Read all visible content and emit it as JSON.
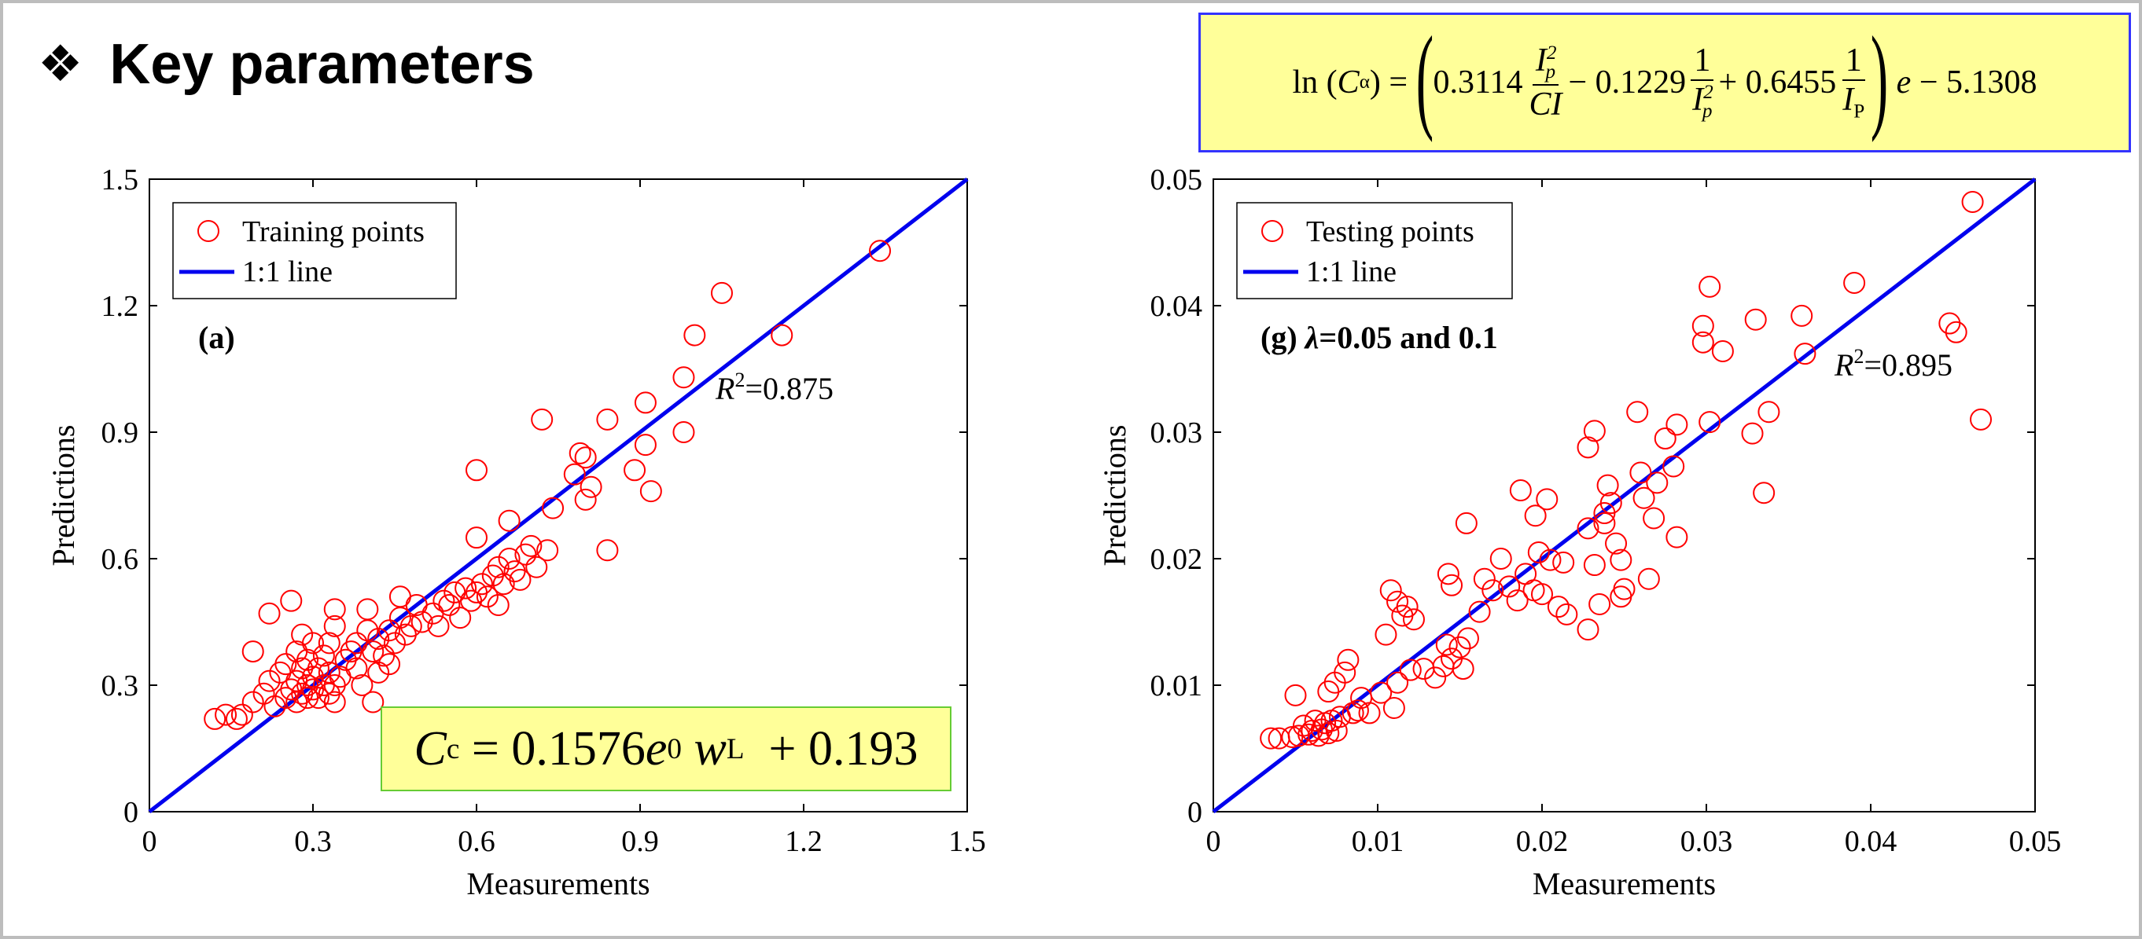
{
  "heading": {
    "bullet": "❖",
    "title": "Key parameters"
  },
  "colors": {
    "points": "#ff0000",
    "line": "#0000ee",
    "formula_bg": "#ffff99",
    "top_formula_border": "#3333ff",
    "left_formula_border": "#66cc33"
  },
  "formula_top": {
    "lhs_fn": "ln",
    "lhs_var": "C",
    "lhs_sub": "α",
    "coef1": "0.3114",
    "frac1_num": "I",
    "frac1_num_sub": "p",
    "frac1_num_sup": "2",
    "frac1_den": "CI",
    "op1": "−",
    "coef2": "0.1229",
    "frac2_num": "1",
    "frac2_den": "I",
    "frac2_den_sub": "p",
    "frac2_den_sup": "2",
    "op2": "+",
    "coef3": "0.6455",
    "frac3_num": "1",
    "frac3_den": "I",
    "frac3_den_sub": "P",
    "tail_var": "e",
    "op3": "−",
    "const": "5.1308"
  },
  "formula_left": {
    "var": "C",
    "var_sub": "c",
    "eq": "=",
    "coef": "0.1576",
    "e": "e",
    "e_sub": "0",
    "w": "w",
    "w_sub": "L",
    "op": "+",
    "const": "0.193"
  },
  "chart_data": [
    {
      "type": "scatter",
      "xlabel": "Measurements",
      "ylabel": "Predictions",
      "xlim": [
        0,
        1.5
      ],
      "ylim": [
        0,
        1.5
      ],
      "ticks": [
        "0",
        "0.3",
        "0.6",
        "0.9",
        "1.2",
        "1.5"
      ],
      "tick_values": [
        0,
        0.3,
        0.6,
        0.9,
        1.2,
        1.5
      ],
      "panel_label": "(a)",
      "r2": {
        "symbol": "R",
        "sup": "2",
        "value": "=0.875"
      },
      "legend": {
        "placement": "top-left",
        "points": "Training points",
        "line": "1:1 line"
      },
      "line": [
        [
          0,
          0
        ],
        [
          1.5,
          1.5
        ]
      ],
      "points": [
        [
          0.12,
          0.22
        ],
        [
          0.14,
          0.23
        ],
        [
          0.16,
          0.22
        ],
        [
          0.17,
          0.23
        ],
        [
          0.19,
          0.26
        ],
        [
          0.19,
          0.38
        ],
        [
          0.21,
          0.28
        ],
        [
          0.22,
          0.31
        ],
        [
          0.22,
          0.47
        ],
        [
          0.23,
          0.25
        ],
        [
          0.24,
          0.33
        ],
        [
          0.25,
          0.27
        ],
        [
          0.25,
          0.35
        ],
        [
          0.26,
          0.29
        ],
        [
          0.26,
          0.5
        ],
        [
          0.27,
          0.26
        ],
        [
          0.27,
          0.31
        ],
        [
          0.27,
          0.38
        ],
        [
          0.28,
          0.28
        ],
        [
          0.28,
          0.34
        ],
        [
          0.28,
          0.42
        ],
        [
          0.29,
          0.27
        ],
        [
          0.29,
          0.3
        ],
        [
          0.29,
          0.36
        ],
        [
          0.3,
          0.29
        ],
        [
          0.3,
          0.32
        ],
        [
          0.3,
          0.4
        ],
        [
          0.31,
          0.27
        ],
        [
          0.31,
          0.34
        ],
        [
          0.32,
          0.3
        ],
        [
          0.32,
          0.37
        ],
        [
          0.33,
          0.28
        ],
        [
          0.33,
          0.33
        ],
        [
          0.33,
          0.4
        ],
        [
          0.34,
          0.26
        ],
        [
          0.34,
          0.3
        ],
        [
          0.34,
          0.44
        ],
        [
          0.34,
          0.48
        ],
        [
          0.35,
          0.32
        ],
        [
          0.36,
          0.36
        ],
        [
          0.37,
          0.38
        ],
        [
          0.38,
          0.34
        ],
        [
          0.38,
          0.4
        ],
        [
          0.39,
          0.3
        ],
        [
          0.4,
          0.43
        ],
        [
          0.4,
          0.48
        ],
        [
          0.41,
          0.26
        ],
        [
          0.41,
          0.38
        ],
        [
          0.42,
          0.33
        ],
        [
          0.42,
          0.41
        ],
        [
          0.43,
          0.37
        ],
        [
          0.44,
          0.35
        ],
        [
          0.44,
          0.43
        ],
        [
          0.45,
          0.4
        ],
        [
          0.46,
          0.46
        ],
        [
          0.46,
          0.51
        ],
        [
          0.47,
          0.42
        ],
        [
          0.48,
          0.44
        ],
        [
          0.49,
          0.49
        ],
        [
          0.5,
          0.45
        ],
        [
          0.52,
          0.47
        ],
        [
          0.53,
          0.44
        ],
        [
          0.54,
          0.5
        ],
        [
          0.55,
          0.49
        ],
        [
          0.56,
          0.52
        ],
        [
          0.57,
          0.46
        ],
        [
          0.58,
          0.53
        ],
        [
          0.59,
          0.5
        ],
        [
          0.6,
          0.52
        ],
        [
          0.6,
          0.81
        ],
        [
          0.6,
          0.65
        ],
        [
          0.61,
          0.54
        ],
        [
          0.62,
          0.51
        ],
        [
          0.63,
          0.56
        ],
        [
          0.64,
          0.49
        ],
        [
          0.64,
          0.58
        ],
        [
          0.65,
          0.54
        ],
        [
          0.66,
          0.6
        ],
        [
          0.66,
          0.69
        ],
        [
          0.67,
          0.57
        ],
        [
          0.68,
          0.55
        ],
        [
          0.69,
          0.61
        ],
        [
          0.7,
          0.63
        ],
        [
          0.71,
          0.58
        ],
        [
          0.72,
          0.93
        ],
        [
          0.73,
          0.62
        ],
        [
          0.74,
          0.72
        ],
        [
          0.78,
          0.8
        ],
        [
          0.79,
          0.85
        ],
        [
          0.8,
          0.74
        ],
        [
          0.8,
          0.84
        ],
        [
          0.81,
          0.77
        ],
        [
          0.84,
          0.62
        ],
        [
          0.84,
          0.93
        ],
        [
          0.89,
          0.81
        ],
        [
          0.91,
          0.87
        ],
        [
          0.91,
          0.97
        ],
        [
          0.92,
          0.76
        ],
        [
          0.98,
          0.9
        ],
        [
          0.98,
          1.03
        ],
        [
          1.0,
          1.13
        ],
        [
          1.05,
          1.23
        ],
        [
          1.16,
          1.13
        ],
        [
          1.34,
          1.33
        ]
      ]
    },
    {
      "type": "scatter",
      "xlabel": "Measurements",
      "ylabel": "Predictions",
      "xlim": [
        0,
        0.05
      ],
      "ylim": [
        0,
        0.05
      ],
      "ticks": [
        "0",
        "0.01",
        "0.02",
        "0.03",
        "0.04",
        "0.05"
      ],
      "tick_values": [
        0,
        0.01,
        0.02,
        0.03,
        0.04,
        0.05
      ],
      "panel_label_prefix": "(g) ",
      "panel_label_symbol": "λ",
      "panel_label_suffix": "=0.05 and 0.1",
      "r2": {
        "symbol": "R",
        "sup": "2",
        "value": "=0.895"
      },
      "legend": {
        "placement": "top-left",
        "points": "Testing points",
        "line": "1:1 line"
      },
      "line": [
        [
          0,
          0
        ],
        [
          0.05,
          0.05
        ]
      ],
      "points": [
        [
          0.0035,
          0.0058
        ],
        [
          0.004,
          0.0058
        ],
        [
          0.0048,
          0.0059
        ],
        [
          0.005,
          0.0092
        ],
        [
          0.0052,
          0.006
        ],
        [
          0.0055,
          0.0068
        ],
        [
          0.0058,
          0.0061
        ],
        [
          0.006,
          0.0064
        ],
        [
          0.0062,
          0.0072
        ],
        [
          0.0064,
          0.006
        ],
        [
          0.0066,
          0.0065
        ],
        [
          0.0068,
          0.007
        ],
        [
          0.007,
          0.0095
        ],
        [
          0.007,
          0.0062
        ],
        [
          0.0072,
          0.0072
        ],
        [
          0.0074,
          0.0102
        ],
        [
          0.0075,
          0.0064
        ],
        [
          0.0077,
          0.0075
        ],
        [
          0.008,
          0.011
        ],
        [
          0.0082,
          0.012
        ],
        [
          0.0085,
          0.0078
        ],
        [
          0.0088,
          0.008
        ],
        [
          0.009,
          0.009
        ],
        [
          0.0095,
          0.0078
        ],
        [
          0.0102,
          0.0094
        ],
        [
          0.0105,
          0.014
        ],
        [
          0.0108,
          0.0175
        ],
        [
          0.011,
          0.0082
        ],
        [
          0.0112,
          0.0102
        ],
        [
          0.0112,
          0.0166
        ],
        [
          0.0115,
          0.0155
        ],
        [
          0.0118,
          0.0162
        ],
        [
          0.012,
          0.0112
        ],
        [
          0.0122,
          0.0152
        ],
        [
          0.0128,
          0.0113
        ],
        [
          0.0135,
          0.0106
        ],
        [
          0.014,
          0.0115
        ],
        [
          0.0142,
          0.0132
        ],
        [
          0.0143,
          0.0188
        ],
        [
          0.0145,
          0.0121
        ],
        [
          0.0145,
          0.0179
        ],
        [
          0.015,
          0.013
        ],
        [
          0.0152,
          0.0113
        ],
        [
          0.0154,
          0.0228
        ],
        [
          0.0155,
          0.0137
        ],
        [
          0.0162,
          0.0158
        ],
        [
          0.0165,
          0.0184
        ],
        [
          0.017,
          0.0175
        ],
        [
          0.0175,
          0.02
        ],
        [
          0.018,
          0.0178
        ],
        [
          0.0185,
          0.0167
        ],
        [
          0.0187,
          0.0254
        ],
        [
          0.019,
          0.0188
        ],
        [
          0.0195,
          0.0175
        ],
        [
          0.0196,
          0.0234
        ],
        [
          0.0198,
          0.0205
        ],
        [
          0.02,
          0.0172
        ],
        [
          0.0203,
          0.0247
        ],
        [
          0.0205,
          0.0199
        ],
        [
          0.021,
          0.0162
        ],
        [
          0.0213,
          0.0197
        ],
        [
          0.0215,
          0.0156
        ],
        [
          0.0228,
          0.0144
        ],
        [
          0.0228,
          0.0224
        ],
        [
          0.0228,
          0.0288
        ],
        [
          0.0232,
          0.0301
        ],
        [
          0.0232,
          0.0195
        ],
        [
          0.0235,
          0.0164
        ],
        [
          0.0238,
          0.0228
        ],
        [
          0.0238,
          0.0236
        ],
        [
          0.024,
          0.0258
        ],
        [
          0.0242,
          0.0244
        ],
        [
          0.0245,
          0.0212
        ],
        [
          0.0248,
          0.0199
        ],
        [
          0.0248,
          0.017
        ],
        [
          0.025,
          0.0176
        ],
        [
          0.0258,
          0.0316
        ],
        [
          0.026,
          0.0268
        ],
        [
          0.0262,
          0.0248
        ],
        [
          0.0265,
          0.0184
        ],
        [
          0.0268,
          0.0232
        ],
        [
          0.027,
          0.026
        ],
        [
          0.0275,
          0.0295
        ],
        [
          0.028,
          0.0273
        ],
        [
          0.0282,
          0.0306
        ],
        [
          0.0282,
          0.0217
        ],
        [
          0.0298,
          0.0384
        ],
        [
          0.0298,
          0.0371
        ],
        [
          0.0302,
          0.0415
        ],
        [
          0.0302,
          0.0308
        ],
        [
          0.031,
          0.0364
        ],
        [
          0.0328,
          0.0299
        ],
        [
          0.033,
          0.0389
        ],
        [
          0.0335,
          0.0252
        ],
        [
          0.0338,
          0.0316
        ],
        [
          0.0358,
          0.0392
        ],
        [
          0.036,
          0.0362
        ],
        [
          0.039,
          0.0418
        ],
        [
          0.0448,
          0.0386
        ],
        [
          0.0452,
          0.0379
        ],
        [
          0.0462,
          0.0482
        ],
        [
          0.0467,
          0.031
        ]
      ]
    }
  ]
}
